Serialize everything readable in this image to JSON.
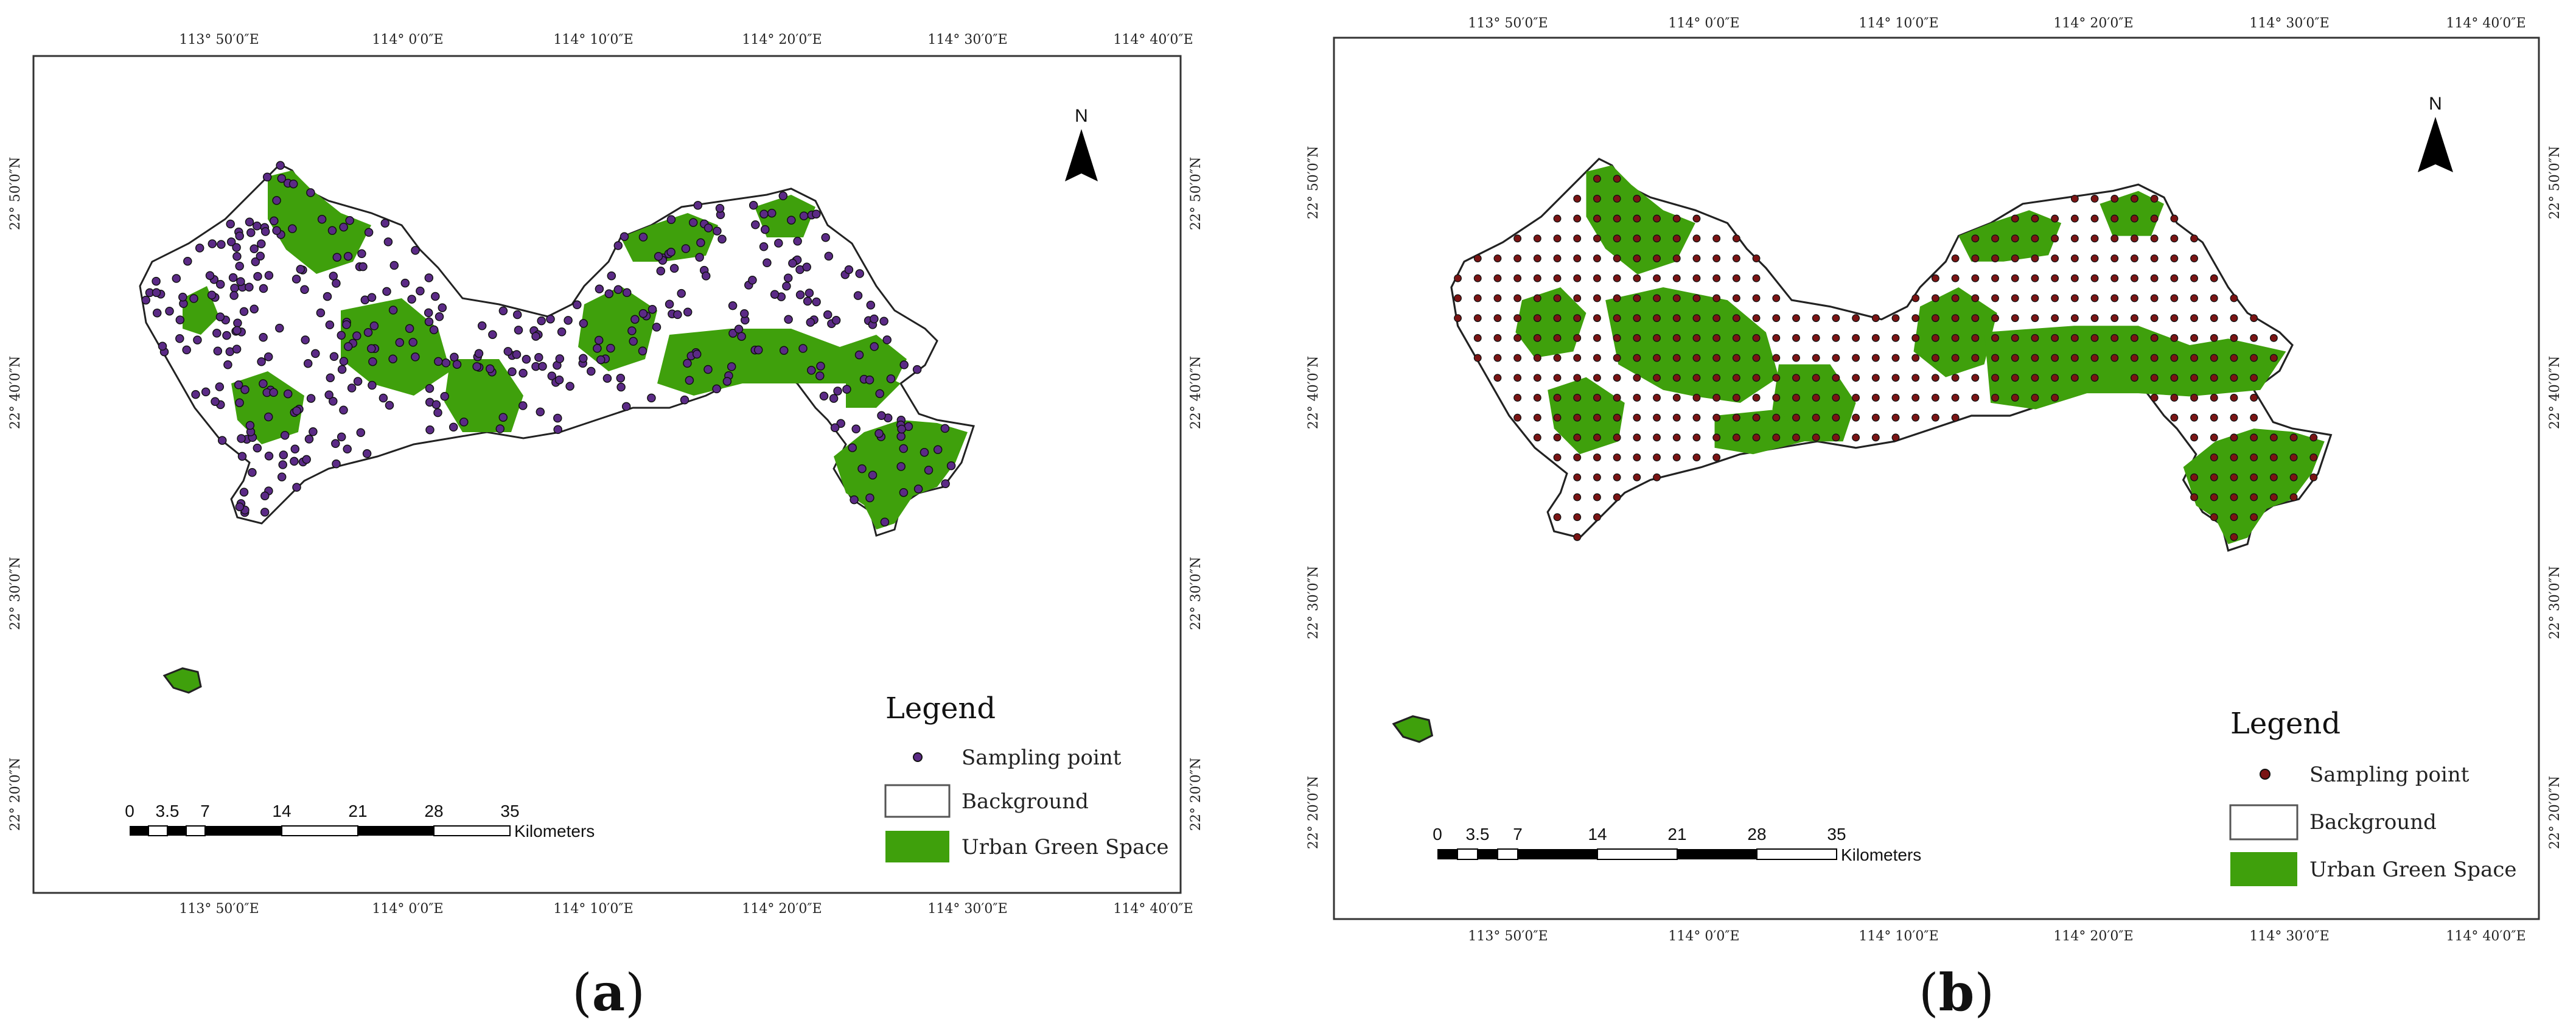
{
  "colors": {
    "green": "#3fa00c",
    "background_fill": "#ffffff",
    "dot_a": "#5b2a86",
    "dot_b": "#7a1414",
    "frame": "#333333"
  },
  "map_a": {
    "caption_open": "(",
    "caption_letter": "a",
    "caption_close": ")",
    "top_ticks": [
      "113° 50′0″E",
      "114° 0′0″E",
      "114° 10′0″E",
      "114° 20′0″E",
      "114° 30′0″E",
      "114° 40′0″E"
    ],
    "bottom_ticks": [
      "113° 50′0″E",
      "114° 0′0″E",
      "114° 10′0″E",
      "114° 20′0″E",
      "114° 30′0″E",
      "114° 40′0″E"
    ],
    "left_ticks": [
      "22° 50′0″N",
      "22° 40′0″N",
      "22° 30′0″N",
      "22° 20′0″N"
    ],
    "right_ticks": [
      "22° 50′0″N",
      "22° 40′0″N",
      "22° 30′0″N",
      "22° 20′0″N"
    ],
    "north": "N",
    "legend": {
      "title": "Legend",
      "items": [
        "Sampling point",
        "Background",
        "Urban Green Space"
      ]
    },
    "scale": {
      "labels": [
        "0",
        "3.5",
        "7",
        "14",
        "21",
        "28",
        "35"
      ],
      "unit": "Kilometers"
    }
  },
  "map_b": {
    "caption_open": "(",
    "caption_letter": "b",
    "caption_close": ")",
    "top_ticks": [
      "113° 50′0″E",
      "114° 0′0″E",
      "114° 10′0″E",
      "114° 20′0″E",
      "114° 30′0″E",
      "114° 40′0″E"
    ],
    "bottom_ticks": [
      "113° 50′0″E",
      "114° 0′0″E",
      "114° 10′0″E",
      "114° 20′0″E",
      "114° 30′0″E",
      "114° 40′0″E"
    ],
    "left_ticks": [
      "22° 50′0″N",
      "22° 40′0″N",
      "22° 30′0″N",
      "22° 20′0″N"
    ],
    "right_ticks": [
      "22° 50′0″N",
      "22° 40′0″N",
      "22° 30′0″N",
      "22° 20′0″N"
    ],
    "north": "N",
    "legend": {
      "title": "Legend",
      "items": [
        "Sampling point",
        "Background",
        "Urban Green Space"
      ]
    },
    "scale": {
      "labels": [
        "0",
        "3.5",
        "7",
        "14",
        "21",
        "28",
        "35"
      ],
      "unit": "Kilometers"
    }
  }
}
